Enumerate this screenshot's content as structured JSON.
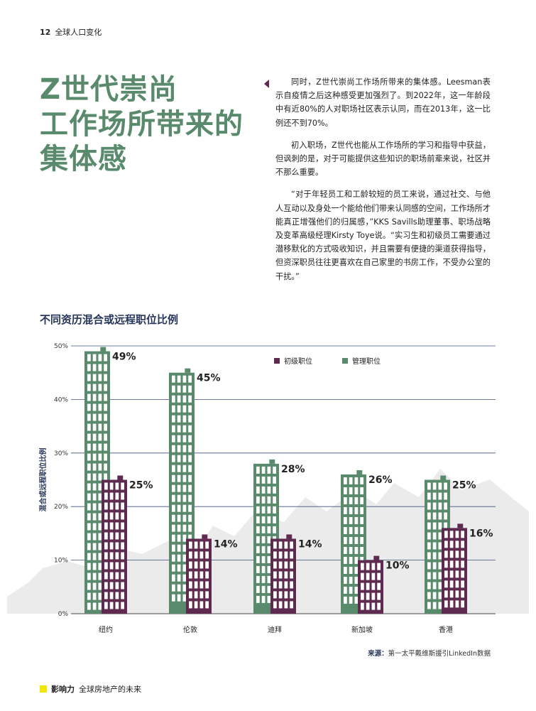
{
  "header": {
    "page_number": "12",
    "section": "全球人口变化"
  },
  "title_lines": [
    "Z世代崇尚",
    "工作场所带来的",
    "集体感"
  ],
  "paragraphs": [
    "同时，Z世代崇尚工作场所带来的集体感。Leesman表示自疫情之后这种感受更加强烈了。到2022年，这一年龄段中有近80%的人对职场社区表示认同，而在2013年，这一比例还不到70%。",
    "初入职场，Z世代也能从工作场所的学习和指导中获益，但讽刺的是，对于可能提供这些知识的职场前辈来说，社区并不那么重要。",
    "“对于年轻员工和工龄较短的员工来说，通过社交、与他人互动以及身处一个能给他们带来认同感的空间，工作场所才能真正增强他们的归属感，”KKS Savills助理董事、职场战略及变革高级经理Kirsty Toye说。“实习生和初级员工需要通过潜移默化的方式吸收知识，并且需要有便捷的渠道获得指导，但资深职员往往更喜欢在自己家里的书房工作，不受办公室的干扰。”"
  ],
  "chart_heading": "不同资历混合或远程职位比例",
  "chart_data": {
    "type": "bar",
    "ylabel": "混合或远程职位比例",
    "ylim": [
      0,
      50
    ],
    "yticks": [
      "0%",
      "10%",
      "20%",
      "30%",
      "40%",
      "50%"
    ],
    "categories": [
      "纽约",
      "伦敦",
      "迪拜",
      "新加坡",
      "香港"
    ],
    "series": [
      {
        "name": "管理职位",
        "values": [
          49,
          45,
          28,
          26,
          25
        ],
        "labels": [
          "49%",
          "45%",
          "28%",
          "26%",
          "25%"
        ],
        "color": "#5a8a6c"
      },
      {
        "name": "初级职位",
        "values": [
          25,
          14,
          14,
          10,
          16
        ],
        "labels": [
          "25%",
          "14%",
          "14%",
          "10%",
          "16%"
        ],
        "color": "#5e2a4f"
      }
    ],
    "legend_order": [
      "初级职位",
      "管理职位"
    ],
    "legend_position": "top-right",
    "grid": true
  },
  "source": {
    "label": "来源：",
    "text": "第一太平戴维斯援引LinkedIn数据"
  },
  "footer": {
    "brand": "影响力",
    "text": "全球房地产的未来",
    "accent_color": "#f2e500"
  }
}
